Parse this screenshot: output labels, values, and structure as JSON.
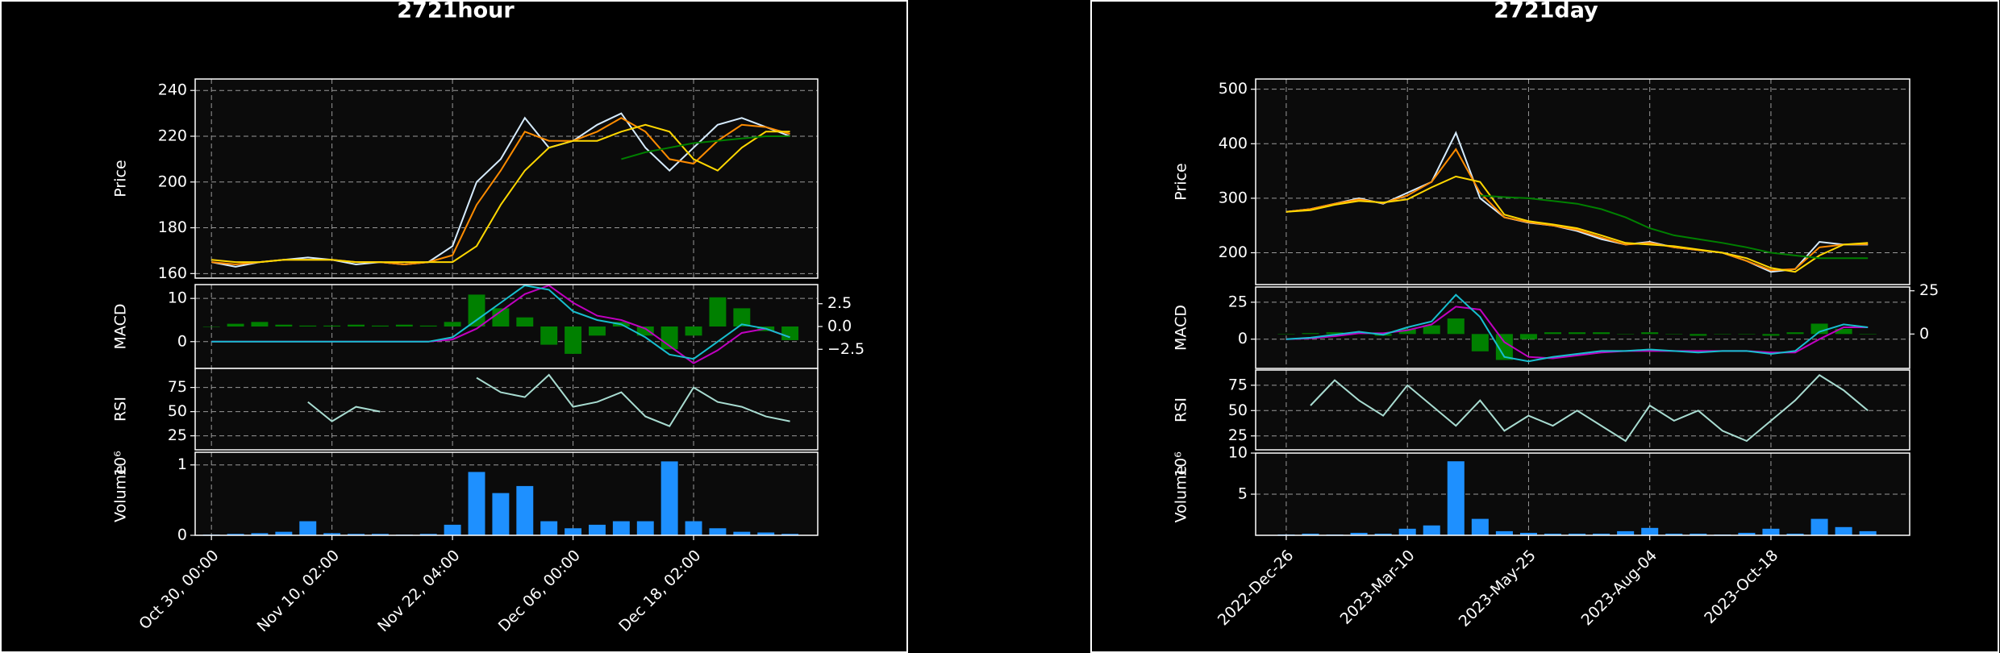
{
  "chart_data": [
    {
      "type": "candlestick",
      "title": "2721hour",
      "grid": true,
      "x": [
        0,
        4,
        8,
        12,
        16,
        20,
        24,
        28,
        32,
        36,
        40,
        44,
        48,
        52,
        56,
        60,
        64,
        68,
        72,
        76,
        80,
        84,
        88,
        92,
        96
      ],
      "xlim": [
        -2.7,
        100.6
      ],
      "xticks": [
        {
          "value": 0,
          "label": "Oct 30, 00:00"
        },
        {
          "value": 20,
          "label": "Nov 10, 02:00"
        },
        {
          "value": 40,
          "label": "Nov 22, 04:00"
        },
        {
          "value": 60,
          "label": "Dec 06, 00:00"
        },
        {
          "value": 80,
          "label": "Dec 18, 02:00"
        }
      ],
      "price": {
        "ylabel": "Price",
        "ylim": [
          158,
          245
        ],
        "yticks": [
          160,
          180,
          200,
          220,
          240
        ],
        "series": [
          {
            "color": "#d6ecff",
            "values": [
              165,
              163,
              165,
              166,
              167,
              166,
              164,
              165,
              164,
              165,
              172,
              200,
              210,
              228,
              215,
              218,
              225,
              230,
              215,
              205,
              215,
              225,
              228,
              224,
              220
            ]
          },
          {
            "color": "#ff8c00",
            "values": [
              165,
              164,
              165,
              166,
              166,
              166,
              165,
              165,
              164,
              165,
              168,
              190,
              205,
              222,
              218,
              218,
              222,
              228,
              222,
              210,
              208,
              218,
              225,
              224,
              221
            ]
          },
          {
            "color": "#ffd700",
            "values": [
              166,
              165,
              165,
              166,
              166,
              166,
              165,
              165,
              165,
              165,
              165,
              172,
              190,
              205,
              215,
              218,
              218,
              222,
              225,
              222,
              210,
              205,
              215,
              222,
              222
            ]
          },
          {
            "color": "#008000",
            "values": [
              null,
              null,
              null,
              null,
              null,
              null,
              null,
              null,
              null,
              null,
              null,
              null,
              null,
              null,
              null,
              null,
              null,
              210,
              213,
              215,
              217,
              218,
              219,
              220,
              220
            ]
          }
        ]
      },
      "macd": {
        "ylabel": "MACD",
        "ylim": [
          -6.2,
          13.2
        ],
        "yticks": [
          0,
          10
        ],
        "y2lim": [
          -4.6,
          4.6
        ],
        "y2ticks": [
          {
            "value": -2.5,
            "label": "−2.5"
          },
          {
            "value": 0,
            "label": "0.0"
          },
          2.5
        ],
        "series": [
          {
            "type": "bar",
            "axis": "y2",
            "color": "#008000",
            "values": [
              0,
              0.3,
              0.5,
              0.2,
              0.1,
              0.1,
              0.2,
              0.1,
              0.2,
              0.1,
              0.5,
              3.5,
              2,
              1,
              -2,
              -3,
              -1,
              0.5,
              -1,
              -2.5,
              -1,
              3.2,
              2,
              -0.5,
              -1.5
            ]
          },
          {
            "color": "#c000c0",
            "values": [
              0,
              0,
              0,
              0,
              0,
              0,
              0,
              0,
              0,
              0,
              0.5,
              3,
              7,
              11,
              13,
              9,
              6,
              5,
              3,
              -1,
              -5,
              -2,
              2,
              3,
              1
            ]
          },
          {
            "color": "#17becf",
            "values": [
              0,
              0,
              0,
              0,
              0,
              0,
              0,
              0,
              0,
              0,
              1,
              5,
              9,
              13,
              12,
              7,
              5,
              4,
              1,
              -3,
              -4,
              0,
              4,
              3,
              1
            ]
          }
        ]
      },
      "rsi": {
        "ylabel": "RSI",
        "ylim": [
          10.5,
          94.7
        ],
        "yticks": [
          25,
          50,
          75
        ],
        "series": [
          {
            "color": "#a8dcd1",
            "values": [
              null,
              null,
              null,
              null,
              60,
              40,
              55,
              50,
              null,
              50,
              null,
              85,
              70,
              65,
              88,
              55,
              60,
              70,
              45,
              35,
              75,
              60,
              55,
              45,
              40
            ]
          }
        ]
      },
      "volume": {
        "ylabel": "Volume",
        "offset_label": "10⁶",
        "ylim": [
          0,
          1.18
        ],
        "yticks": [
          0,
          1
        ],
        "series": [
          {
            "type": "bar",
            "color": "#1e90ff",
            "values": [
              0.01,
              0.02,
              0.03,
              0.05,
              0.2,
              0.03,
              0.02,
              0.02,
              0.01,
              0.02,
              0.15,
              0.9,
              0.6,
              0.7,
              0.2,
              0.1,
              0.15,
              0.2,
              0.2,
              1.05,
              0.2,
              0.1,
              0.05,
              0.04,
              0.02
            ]
          }
        ]
      }
    },
    {
      "type": "candlestick",
      "title": "2721day",
      "grid": true,
      "x": [
        0,
        4,
        8,
        12,
        16,
        20,
        24,
        28,
        32,
        36,
        40,
        44,
        48,
        52,
        56,
        60,
        64,
        68,
        72,
        76,
        80,
        84,
        88,
        92,
        96
      ],
      "xlim": [
        -5.05,
        102.9
      ],
      "xticks": [
        {
          "value": 0,
          "label": "2022-Dec-26"
        },
        {
          "value": 20,
          "label": "2023-Mar-10"
        },
        {
          "value": 40,
          "label": "2023-May-25"
        },
        {
          "value": 60,
          "label": "2023-Aug-04"
        },
        {
          "value": 80,
          "label": "2023-Oct-18"
        }
      ],
      "price": {
        "ylabel": "Price",
        "ylim": [
          141.6,
          518.75
        ],
        "yticks": [
          200,
          300,
          400,
          500
        ],
        "series": [
          {
            "color": "#d6ecff",
            "values": [
              275,
              280,
              290,
              300,
              290,
              310,
              330,
              420,
              300,
              265,
              255,
              250,
              240,
              225,
              215,
              220,
              210,
              205,
              200,
              185,
              165,
              170,
              220,
              215,
              215
            ]
          },
          {
            "color": "#ff8c00",
            "values": [
              275,
              280,
              290,
              298,
              291,
              305,
              330,
              390,
              310,
              265,
              256,
              250,
              242,
              228,
              215,
              218,
              210,
              205,
              200,
              185,
              168,
              170,
              210,
              215,
              216
            ]
          },
          {
            "color": "#ffd700",
            "values": [
              275,
              278,
              288,
              295,
              292,
              298,
              320,
              340,
              330,
              270,
              258,
              252,
              245,
              232,
              218,
              215,
              212,
              206,
              200,
              190,
              172,
              165,
              195,
              215,
              218
            ]
          },
          {
            "color": "#008000",
            "values": [
              null,
              null,
              null,
              null,
              null,
              null,
              null,
              null,
              305,
              302,
              300,
              295,
              290,
              280,
              265,
              245,
              232,
              225,
              218,
              210,
              200,
              195,
              190,
              190,
              190
            ]
          }
        ]
      },
      "macd": {
        "ylabel": "MACD",
        "ylim": [
          -19.8,
          35.3
        ],
        "yticks": [
          0,
          25
        ],
        "y2lim": [
          -19.9,
          27.2
        ],
        "y2ticks": [
          0,
          25
        ],
        "series": [
          {
            "type": "bar",
            "axis": "y2",
            "color": "#008000",
            "values": [
              0,
              0.5,
              1,
              1,
              -1,
              3,
              5,
              9,
              -10,
              -15,
              -3,
              1,
              1,
              1,
              0,
              1,
              0,
              -1,
              0,
              0,
              -1,
              1,
              6,
              3,
              0
            ]
          },
          {
            "color": "#c000c0",
            "values": [
              0,
              0.5,
              2,
              4,
              4,
              6,
              10,
              22,
              20,
              -2,
              -12,
              -13,
              -11,
              -9,
              -8,
              -8,
              -8,
              -8,
              -8,
              -8,
              -9,
              -9,
              0,
              8,
              8
            ]
          },
          {
            "color": "#17becf",
            "values": [
              0,
              1,
              3,
              5,
              3,
              8,
              12,
              30,
              15,
              -12,
              -15,
              -12,
              -10,
              -8,
              -8,
              -7,
              -8,
              -9,
              -8,
              -8,
              -10,
              -8,
              5,
              10,
              8
            ]
          }
        ]
      },
      "rsi": {
        "ylabel": "RSI",
        "ylim": [
          11.25,
          90
        ],
        "yticks": [
          25,
          50,
          75
        ],
        "series": [
          {
            "color": "#a8dcd1",
            "values": [
              null,
              55,
              80,
              60,
              45,
              75,
              55,
              35,
              60,
              30,
              45,
              35,
              50,
              35,
              20,
              55,
              40,
              50,
              30,
              20,
              40,
              60,
              85,
              70,
              50
            ]
          }
        ]
      },
      "volume": {
        "ylabel": "Volume",
        "offset_label": "10⁶",
        "ylim": [
          0,
          10
        ],
        "yticks": [
          5,
          10
        ],
        "series": [
          {
            "type": "bar",
            "color": "#1e90ff",
            "values": [
              0.1,
              0.2,
              0.1,
              0.3,
              0.2,
              0.8,
              1.2,
              9,
              2,
              0.5,
              0.3,
              0.2,
              0.2,
              0.2,
              0.5,
              0.9,
              0.2,
              0.2,
              0.1,
              0.3,
              0.8,
              0.2,
              2,
              1,
              0.5
            ]
          }
        ]
      }
    }
  ]
}
